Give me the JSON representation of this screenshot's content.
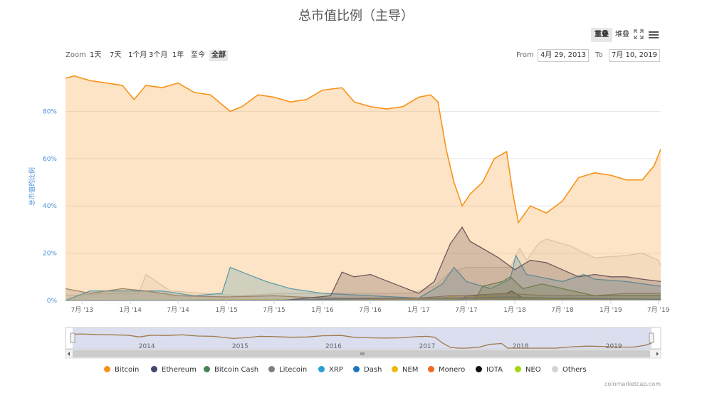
{
  "title": "总市值比例（主导）",
  "toolbar": {
    "overlap_label": "重叠",
    "stack_label": "堆叠"
  },
  "zoom": {
    "label": "Zoom",
    "buttons": [
      "1天",
      "7天",
      "1个月",
      "3个月",
      "1年",
      "至今",
      "全部"
    ],
    "selected": "全部"
  },
  "range": {
    "from_label": "From",
    "from_value": "4月 29, 2013",
    "to_label": "To",
    "to_value": "7月 10, 2019"
  },
  "credits": "coinmarketcap.com",
  "chart_data": {
    "type": "area",
    "title": "总市值比例（主导）",
    "ylabel": "总市值的比例",
    "ylim": [
      0,
      97
    ],
    "yticks": [
      0,
      20,
      40,
      60,
      80
    ],
    "ytick_labels": [
      "0%",
      "20%",
      "40%",
      "60%",
      "80%"
    ],
    "xlim": [
      "2013-04-29",
      "2019-07-10"
    ],
    "xticks": [
      "2013-07-01",
      "2014-01-01",
      "2014-07-01",
      "2015-01-01",
      "2015-07-01",
      "2016-01-01",
      "2016-07-01",
      "2017-01-01",
      "2017-07-01",
      "2018-01-01",
      "2018-07-01",
      "2019-01-01",
      "2019-07-01"
    ],
    "xtick_labels": [
      "7月 '13",
      "1月 '14",
      "7月 '14",
      "1月 '15",
      "7月 '15",
      "1月 '16",
      "7月 '16",
      "1月 '17",
      "7月 '17",
      "1月 '18",
      "7月 '18",
      "1月 '19",
      "7月 '19"
    ],
    "navigator_labels": [
      "2014",
      "2015",
      "2016",
      "2017",
      "2018",
      "2019"
    ],
    "grid": true,
    "legend_position": "bottom",
    "series": [
      {
        "name": "Bitcoin",
        "color": "#f7931a",
        "x": [
          "2013-04-29",
          "2013-06-01",
          "2013-08-01",
          "2013-10-01",
          "2013-12-01",
          "2014-01-15",
          "2014-03-01",
          "2014-05-01",
          "2014-07-01",
          "2014-09-01",
          "2014-11-01",
          "2015-01-15",
          "2015-03-01",
          "2015-05-01",
          "2015-07-01",
          "2015-09-01",
          "2015-11-01",
          "2016-01-01",
          "2016-03-15",
          "2016-05-01",
          "2016-07-01",
          "2016-09-01",
          "2016-11-01",
          "2017-01-01",
          "2017-02-15",
          "2017-03-15",
          "2017-04-15",
          "2017-05-15",
          "2017-06-15",
          "2017-07-15",
          "2017-09-01",
          "2017-10-15",
          "2017-12-01",
          "2017-12-25",
          "2018-01-15",
          "2018-03-01",
          "2018-05-01",
          "2018-07-01",
          "2018-09-01",
          "2018-11-01",
          "2019-01-01",
          "2019-03-01",
          "2019-05-01",
          "2019-06-15",
          "2019-07-10"
        ],
        "values": [
          94,
          95,
          93,
          92,
          91,
          85,
          91,
          90,
          92,
          88,
          87,
          80,
          82,
          87,
          86,
          84,
          85,
          89,
          90,
          84,
          82,
          81,
          82,
          86,
          87,
          84,
          64,
          50,
          40,
          45,
          50,
          60,
          63,
          45,
          33,
          40,
          37,
          42,
          52,
          54,
          53,
          51,
          51,
          57,
          64
        ]
      },
      {
        "name": "Ethereum",
        "color": "#434670",
        "x": [
          "2013-04-29",
          "2015-08-01",
          "2016-02-01",
          "2016-03-15",
          "2016-05-01",
          "2016-07-01",
          "2016-10-01",
          "2017-01-01",
          "2017-03-01",
          "2017-05-01",
          "2017-06-15",
          "2017-07-15",
          "2017-09-01",
          "2017-11-01",
          "2018-01-01",
          "2018-03-01",
          "2018-05-01",
          "2018-07-01",
          "2018-09-01",
          "2018-11-01",
          "2019-01-01",
          "2019-03-01",
          "2019-05-01",
          "2019-07-10"
        ],
        "values": [
          0,
          0,
          2,
          12,
          10,
          11,
          7,
          3,
          8,
          24,
          31,
          25,
          22,
          18,
          13,
          17,
          16,
          13,
          10,
          11,
          10,
          10,
          9,
          8
        ]
      },
      {
        "name": "Bitcoin Cash",
        "color": "#478559",
        "x": [
          "2013-04-29",
          "2017-08-01",
          "2017-09-01",
          "2017-11-15",
          "2017-12-15",
          "2018-02-01",
          "2018-04-15",
          "2018-07-01",
          "2018-11-01",
          "2019-01-01",
          "2019-04-15",
          "2019-07-10"
        ],
        "values": [
          0,
          0,
          6,
          8,
          10,
          5,
          7,
          5,
          2,
          2,
          2,
          2
        ]
      },
      {
        "name": "Litecoin",
        "color": "#7f7f7f",
        "x": [
          "2013-04-29",
          "2013-08-01",
          "2013-12-01",
          "2014-03-01",
          "2014-07-01",
          "2015-01-01",
          "2015-07-01",
          "2016-01-01",
          "2016-07-01",
          "2017-01-01",
          "2017-05-01",
          "2017-08-01",
          "2017-12-01",
          "2018-05-01",
          "2018-11-01",
          "2019-03-01",
          "2019-07-10"
        ],
        "values": [
          5,
          3,
          5,
          4,
          2,
          1.5,
          2,
          1,
          1,
          1,
          2,
          2,
          3,
          2,
          2,
          3,
          3
        ]
      },
      {
        "name": "XRP",
        "color": "#2a9fd6",
        "x": [
          "2013-04-29",
          "2013-08-01",
          "2014-01-01",
          "2014-05-01",
          "2014-09-01",
          "2014-12-15",
          "2015-01-15",
          "2015-03-01",
          "2015-06-01",
          "2015-09-01",
          "2016-01-01",
          "2016-07-01",
          "2017-01-01",
          "2017-04-01",
          "2017-05-15",
          "2017-07-01",
          "2017-10-01",
          "2017-12-15",
          "2018-01-05",
          "2018-02-15",
          "2018-07-01",
          "2018-09-20",
          "2018-11-01",
          "2019-03-01",
          "2019-07-10"
        ],
        "values": [
          0,
          4,
          4,
          4,
          2,
          3,
          14,
          12,
          8,
          5,
          3,
          2,
          1,
          7,
          14,
          8,
          5,
          9,
          19,
          11,
          8,
          11,
          9,
          8,
          6
        ]
      },
      {
        "name": "Dash",
        "color": "#1c75bc",
        "x": [
          "2013-04-29",
          "2015-06-01",
          "2016-01-01",
          "2017-01-01",
          "2017-06-01",
          "2017-12-01",
          "2018-06-01",
          "2019-07-10"
        ],
        "values": [
          0,
          0,
          0.5,
          1,
          1,
          1.5,
          1,
          0.5
        ]
      },
      {
        "name": "NEM",
        "color": "#f0b90b",
        "x": [
          "2013-04-29",
          "2016-01-01",
          "2017-03-01",
          "2017-06-01",
          "2018-01-01",
          "2018-06-01",
          "2019-07-10"
        ],
        "values": [
          0,
          0.2,
          0.5,
          2,
          1.2,
          0.5,
          0.3
        ]
      },
      {
        "name": "Monero",
        "color": "#f26822",
        "x": [
          "2013-04-29",
          "2016-01-01",
          "2016-09-01",
          "2017-06-01",
          "2018-01-01",
          "2019-07-10"
        ],
        "values": [
          0,
          0.2,
          1,
          1,
          1,
          0.5
        ]
      },
      {
        "name": "IOTA",
        "color": "#111111",
        "x": [
          "2013-04-29",
          "2017-06-10",
          "2017-07-01",
          "2017-12-01",
          "2017-12-20",
          "2018-02-01",
          "2018-07-01",
          "2019-07-10"
        ],
        "values": [
          0,
          0,
          2,
          3,
          4,
          1,
          1,
          0.3
        ]
      },
      {
        "name": "NEO",
        "color": "#a2d80c",
        "x": [
          "2013-04-29",
          "2017-06-01",
          "2017-08-01",
          "2018-01-15",
          "2018-07-01",
          "2019-07-10"
        ],
        "values": [
          0,
          0.5,
          1,
          1.5,
          0.5,
          0.3
        ]
      },
      {
        "name": "Others",
        "color": "#d3d3d3",
        "x": [
          "2013-04-29",
          "2013-10-01",
          "2014-02-01",
          "2014-03-01",
          "2014-06-01",
          "2014-10-01",
          "2015-03-01",
          "2015-08-01",
          "2015-12-01",
          "2016-06-01",
          "2016-12-01",
          "2017-03-01",
          "2017-05-01",
          "2017-07-01",
          "2017-09-01",
          "2017-12-15",
          "2018-01-20",
          "2018-02-15",
          "2018-04-01",
          "2018-05-01",
          "2018-08-01",
          "2018-11-01",
          "2019-03-01",
          "2019-05-01",
          "2019-07-01",
          "2019-07-10"
        ],
        "values": [
          2,
          3,
          3,
          11,
          4,
          3,
          2,
          3,
          3,
          3,
          3,
          6,
          12,
          14,
          14,
          14,
          22,
          17,
          24,
          26,
          23,
          18,
          19,
          20,
          17,
          15
        ]
      }
    ]
  }
}
